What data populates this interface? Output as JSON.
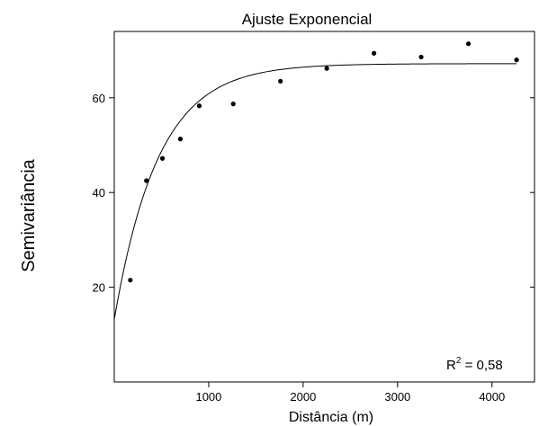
{
  "chart_data": {
    "type": "scatter",
    "title": "Ajuste Exponencial",
    "xlabel": "Distância (m)",
    "ylabel": "Semivariância",
    "xlim": [
      0,
      4450
    ],
    "ylim": [
      0,
      74
    ],
    "x_ticks": [
      1000,
      2000,
      3000,
      4000
    ],
    "x_tick_labels": [
      "1000",
      "2000",
      "3000",
      "4000"
    ],
    "y_ticks": [
      20,
      40,
      60
    ],
    "y_tick_labels": [
      "20",
      "40",
      "60"
    ],
    "grid": false,
    "series": [
      {
        "points": [
          {
            "x": 170,
            "y": 21.5
          },
          {
            "x": 340,
            "y": 42.5
          },
          {
            "x": 510,
            "y": 47.2
          },
          {
            "x": 700,
            "y": 51.3
          },
          {
            "x": 900,
            "y": 58.3
          },
          {
            "x": 1260,
            "y": 58.7
          },
          {
            "x": 1760,
            "y": 63.5
          },
          {
            "x": 2250,
            "y": 66.2
          },
          {
            "x": 2750,
            "y": 69.4
          },
          {
            "x": 3250,
            "y": 68.6
          },
          {
            "x": 3750,
            "y": 71.4
          },
          {
            "x": 4260,
            "y": 68.0
          }
        ]
      }
    ],
    "fit": {
      "model": "exponential",
      "nugget": 13.2,
      "sill": 67.2,
      "range": 1400,
      "x_range": [
        0,
        4260
      ]
    },
    "annotation": {
      "text_base": "R",
      "text_sup": "2",
      "text_value": " = 0,58"
    }
  }
}
